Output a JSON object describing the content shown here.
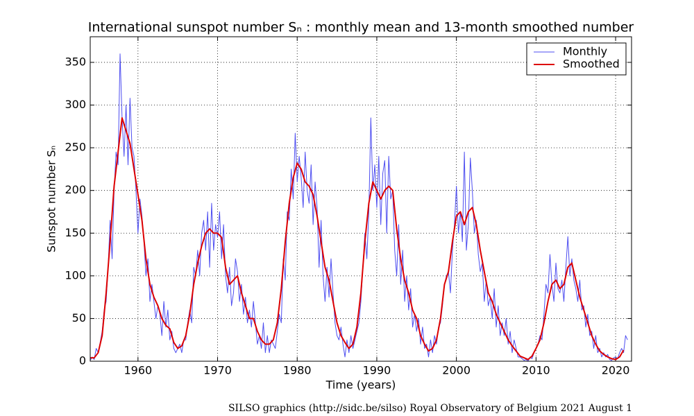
{
  "chart_data": {
    "type": "line",
    "title": "International sunspot number Sₙ : monthly mean and 13-month smoothed number",
    "xlabel": "Time (years)",
    "ylabel": "Sunspot number Sₙ",
    "footer": "SILSO graphics (http://sidc.be/silso)  Royal Observatory of Belgium  2021 August 1",
    "xlim": [
      1954,
      2022
    ],
    "ylim": [
      0,
      380
    ],
    "xticks": [
      1960,
      1970,
      1980,
      1990,
      2000,
      2010,
      2020
    ],
    "yticks": [
      0,
      50,
      100,
      150,
      200,
      250,
      300,
      350
    ],
    "grid": true,
    "legend": "upper right",
    "series": [
      {
        "name": "Monthly",
        "color": "#4d4df0",
        "width": 1,
        "x": [
          1954,
          1954.25,
          1954.5,
          1954.75,
          1955,
          1955.25,
          1955.5,
          1955.75,
          1956,
          1956.25,
          1956.5,
          1956.75,
          1957,
          1957.25,
          1957.5,
          1957.75,
          1958,
          1958.25,
          1958.5,
          1958.75,
          1959,
          1959.25,
          1959.5,
          1959.75,
          1960,
          1960.25,
          1960.5,
          1960.75,
          1961,
          1961.25,
          1961.5,
          1961.75,
          1962,
          1962.25,
          1962.5,
          1962.75,
          1963,
          1963.25,
          1963.5,
          1963.75,
          1964,
          1964.25,
          1964.5,
          1964.75,
          1965,
          1965.25,
          1965.5,
          1965.75,
          1966,
          1966.25,
          1966.5,
          1966.75,
          1967,
          1967.25,
          1967.5,
          1967.75,
          1968,
          1968.25,
          1968.5,
          1968.75,
          1969,
          1969.25,
          1969.5,
          1969.75,
          1970,
          1970.25,
          1970.5,
          1970.75,
          1971,
          1971.25,
          1971.5,
          1971.75,
          1972,
          1972.25,
          1972.5,
          1972.75,
          1973,
          1973.25,
          1973.5,
          1973.75,
          1974,
          1974.25,
          1974.5,
          1974.75,
          1975,
          1975.25,
          1975.5,
          1975.75,
          1976,
          1976.25,
          1976.5,
          1976.75,
          1977,
          1977.25,
          1977.5,
          1977.75,
          1978,
          1978.25,
          1978.5,
          1978.75,
          1979,
          1979.25,
          1979.5,
          1979.75,
          1980,
          1980.25,
          1980.5,
          1980.75,
          1981,
          1981.25,
          1981.5,
          1981.75,
          1982,
          1982.25,
          1982.5,
          1982.75,
          1983,
          1983.25,
          1983.5,
          1983.75,
          1984,
          1984.25,
          1984.5,
          1984.75,
          1985,
          1985.25,
          1985.5,
          1985.75,
          1986,
          1986.25,
          1986.5,
          1986.75,
          1987,
          1987.25,
          1987.5,
          1987.75,
          1988,
          1988.25,
          1988.5,
          1988.75,
          1989,
          1989.25,
          1989.5,
          1989.75,
          1990,
          1990.25,
          1990.5,
          1990.75,
          1991,
          1991.25,
          1991.5,
          1991.75,
          1992,
          1992.25,
          1992.5,
          1992.75,
          1993,
          1993.25,
          1993.5,
          1993.75,
          1994,
          1994.25,
          1994.5,
          1994.75,
          1995,
          1995.25,
          1995.5,
          1995.75,
          1996,
          1996.25,
          1996.5,
          1996.75,
          1997,
          1997.25,
          1997.5,
          1997.75,
          1998,
          1998.25,
          1998.5,
          1998.75,
          1999,
          1999.25,
          1999.5,
          1999.75,
          2000,
          2000.25,
          2000.5,
          2000.75,
          2001,
          2001.25,
          2001.5,
          2001.75,
          2002,
          2002.25,
          2002.5,
          2002.75,
          2003,
          2003.25,
          2003.5,
          2003.75,
          2004,
          2004.25,
          2004.5,
          2004.75,
          2005,
          2005.25,
          2005.5,
          2005.75,
          2006,
          2006.25,
          2006.5,
          2006.75,
          2007,
          2007.25,
          2007.5,
          2007.75,
          2008,
          2008.25,
          2008.5,
          2008.75,
          2009,
          2009.25,
          2009.5,
          2009.75,
          2010,
          2010.25,
          2010.5,
          2010.75,
          2011,
          2011.25,
          2011.5,
          2011.75,
          2012,
          2012.25,
          2012.5,
          2012.75,
          2013,
          2013.25,
          2013.5,
          2013.75,
          2014,
          2014.25,
          2014.5,
          2014.75,
          2015,
          2015.25,
          2015.5,
          2015.75,
          2016,
          2016.25,
          2016.5,
          2016.75,
          2017,
          2017.25,
          2017.5,
          2017.75,
          2018,
          2018.25,
          2018.5,
          2018.75,
          2019,
          2019.25,
          2019.5,
          2019.75,
          2020,
          2020.25,
          2020.5,
          2020.75,
          2021,
          2021.25,
          2021.5
        ],
        "values": [
          1,
          5,
          2,
          15,
          10,
          22,
          35,
          60,
          70,
          110,
          165,
          120,
          200,
          245,
          230,
          360,
          285,
          240,
          300,
          230,
          308,
          250,
          240,
          200,
          150,
          190,
          170,
          140,
          100,
          120,
          70,
          90,
          70,
          50,
          65,
          55,
          30,
          70,
          40,
          60,
          25,
          35,
          15,
          10,
          15,
          20,
          10,
          25,
          25,
          45,
          60,
          45,
          110,
          100,
          130,
          100,
          150,
          165,
          130,
          175,
          110,
          185,
          130,
          160,
          145,
          175,
          120,
          160,
          100,
          80,
          110,
          65,
          80,
          120,
          105,
          70,
          90,
          55,
          75,
          45,
          60,
          40,
          70,
          45,
          20,
          30,
          15,
          45,
          10,
          30,
          10,
          25,
          20,
          15,
          35,
          55,
          45,
          120,
          95,
          175,
          165,
          225,
          190,
          267,
          210,
          240,
          215,
          180,
          245,
          200,
          185,
          230,
          160,
          210,
          180,
          110,
          165,
          100,
          70,
          110,
          75,
          120,
          80,
          45,
          30,
          25,
          40,
          20,
          5,
          25,
          10,
          30,
          15,
          25,
          35,
          45,
          70,
          110,
          150,
          120,
          175,
          285,
          200,
          230,
          180,
          240,
          160,
          220,
          235,
          150,
          240,
          190,
          200,
          130,
          100,
          160,
          90,
          130,
          70,
          100,
          60,
          85,
          40,
          55,
          35,
          50,
          20,
          40,
          15,
          20,
          5,
          25,
          10,
          30,
          20,
          40,
          45,
          65,
          90,
          100,
          105,
          80,
          130,
          160,
          205,
          150,
          175,
          140,
          245,
          130,
          160,
          238,
          200,
          150,
          165,
          125,
          105,
          115,
          70,
          95,
          65,
          75,
          50,
          85,
          40,
          65,
          30,
          45,
          30,
          50,
          20,
          35,
          10,
          25,
          15,
          5,
          5,
          3,
          1,
          2,
          0,
          5,
          3,
          10,
          15,
          20,
          30,
          25,
          55,
          90,
          80,
          125,
          90,
          70,
          115,
          85,
          80,
          95,
          70,
          110,
          146,
          100,
          120,
          95,
          85,
          70,
          95,
          60,
          65,
          40,
          55,
          30,
          35,
          15,
          30,
          10,
          15,
          5,
          10,
          5,
          8,
          2,
          1,
          4,
          5,
          3,
          10,
          15,
          10,
          30,
          25
        ]
      },
      {
        "name": "Smoothed",
        "color": "#dd0000",
        "width": 2,
        "x": [
          1954,
          1954.5,
          1955,
          1955.5,
          1956,
          1956.5,
          1957,
          1957.5,
          1958,
          1958.5,
          1959,
          1959.5,
          1960,
          1960.5,
          1961,
          1961.5,
          1962,
          1962.5,
          1963,
          1963.5,
          1964,
          1964.5,
          1965,
          1965.5,
          1966,
          1966.5,
          1967,
          1967.5,
          1968,
          1968.5,
          1969,
          1969.5,
          1970,
          1970.5,
          1971,
          1971.5,
          1972,
          1972.5,
          1973,
          1973.5,
          1974,
          1974.5,
          1975,
          1975.5,
          1976,
          1976.5,
          1977,
          1977.5,
          1978,
          1978.5,
          1979,
          1979.5,
          1980,
          1980.5,
          1981,
          1981.5,
          1982,
          1982.5,
          1983,
          1983.5,
          1984,
          1984.5,
          1985,
          1985.5,
          1986,
          1986.5,
          1987,
          1987.5,
          1988,
          1988.5,
          1989,
          1989.5,
          1990,
          1990.5,
          1991,
          1991.5,
          1992,
          1992.5,
          1993,
          1993.5,
          1994,
          1994.5,
          1995,
          1995.5,
          1996,
          1996.5,
          1997,
          1997.5,
          1998,
          1998.5,
          1999,
          1999.5,
          2000,
          2000.5,
          2001,
          2001.5,
          2002,
          2002.5,
          2003,
          2003.5,
          2004,
          2004.5,
          2005,
          2005.5,
          2006,
          2006.5,
          2007,
          2007.5,
          2008,
          2008.5,
          2009,
          2009.5,
          2010,
          2010.5,
          2011,
          2011.5,
          2012,
          2012.5,
          2013,
          2013.5,
          2014,
          2014.5,
          2015,
          2015.5,
          2016,
          2016.5,
          2017,
          2017.5,
          2018,
          2018.5,
          2019,
          2019.5,
          2020,
          2020.5,
          2021
        ],
        "values": [
          4,
          4,
          10,
          30,
          80,
          140,
          205,
          245,
          285,
          270,
          255,
          225,
          195,
          165,
          120,
          90,
          75,
          65,
          50,
          42,
          38,
          22,
          15,
          18,
          30,
          55,
          90,
          115,
          135,
          150,
          155,
          150,
          150,
          145,
          110,
          90,
          95,
          100,
          80,
          65,
          50,
          50,
          35,
          25,
          20,
          20,
          25,
          45,
          85,
          140,
          185,
          215,
          232,
          225,
          210,
          205,
          195,
          170,
          140,
          110,
          95,
          70,
          45,
          30,
          22,
          15,
          20,
          40,
          80,
          140,
          185,
          210,
          200,
          190,
          200,
          205,
          200,
          155,
          120,
          95,
          80,
          60,
          50,
          30,
          20,
          12,
          15,
          25,
          50,
          90,
          105,
          140,
          170,
          175,
          160,
          175,
          180,
          160,
          130,
          105,
          80,
          70,
          55,
          45,
          35,
          25,
          18,
          12,
          6,
          4,
          2,
          6,
          15,
          25,
          45,
          70,
          90,
          95,
          85,
          90,
          110,
          115,
          95,
          75,
          60,
          45,
          30,
          20,
          12,
          8,
          5,
          3,
          2,
          5,
          13
        ]
      }
    ]
  }
}
